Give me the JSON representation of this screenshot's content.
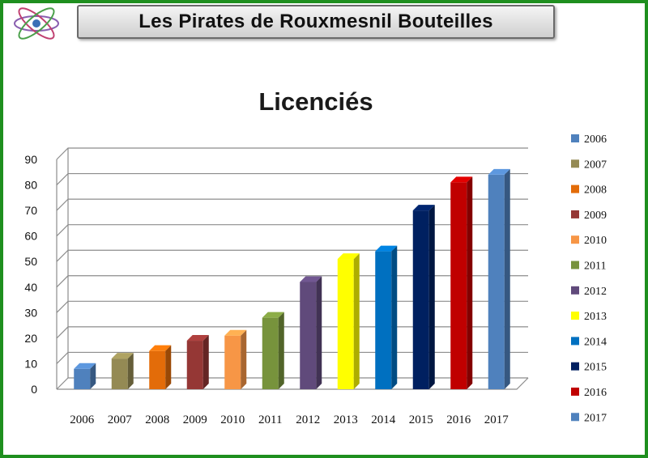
{
  "header": {
    "title": "Les Pirates de Rouxmesnil Bouteilles"
  },
  "logo": {
    "icon": "club-logo-icon"
  },
  "chart_data": {
    "type": "bar",
    "title": "Licenciés",
    "xlabel": "",
    "ylabel": "",
    "ylim": [
      0,
      90
    ],
    "yticks": [
      "0",
      "10",
      "20",
      "30",
      "40",
      "50",
      "60",
      "70",
      "80",
      "90"
    ],
    "grid": true,
    "legend_position": "right",
    "categories": [
      "2006",
      "2007",
      "2008",
      "2009",
      "2010",
      "2011",
      "2012",
      "2013",
      "2014",
      "2015",
      "2016",
      "2017"
    ],
    "values": [
      8,
      12,
      15,
      19,
      21,
      28,
      42,
      51,
      54,
      70,
      81,
      84
    ],
    "colors": [
      "#4f81bd",
      "#948a54",
      "#e36c09",
      "#953735",
      "#f79646",
      "#77933c",
      "#604a7b",
      "#ffff00",
      "#0070c0",
      "#002060",
      "#c00000",
      "#4f81bd"
    ]
  }
}
